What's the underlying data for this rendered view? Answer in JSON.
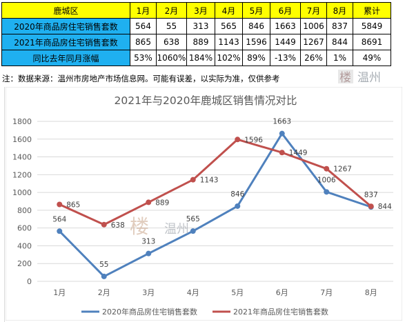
{
  "table": {
    "header": [
      "鹿城区",
      "1月",
      "2月",
      "3月",
      "4月",
      "5月",
      "6月",
      "7月",
      "8月",
      "累计"
    ],
    "rows": [
      {
        "label": "2020年商品房住宅销售套数",
        "cells": [
          "564",
          "55",
          "313",
          "565",
          "846",
          "1663",
          "1006",
          "837",
          "5849"
        ]
      },
      {
        "label": "2021年商品房住宅销售套数",
        "cells": [
          "865",
          "638",
          "889",
          "1143",
          "1596",
          "1449",
          "1267",
          "844",
          "8691"
        ]
      },
      {
        "label": "同比去年同月涨幅",
        "cells": [
          "53%",
          "1060%",
          "184%",
          "102%",
          "89%",
          "-13%",
          "26%",
          "1%",
          "49%"
        ]
      }
    ]
  },
  "note": "注：数据来源：温州市房地产市场信息网。可能有误差，以实际为准，仅供参考",
  "watermark": {
    "brand_char": "楼",
    "city": "温州"
  },
  "colors": {
    "series2020": "#4f81bd",
    "series2021": "#c0504d",
    "header_bg": "#ffff00",
    "label_bg": "#1fb0f0"
  },
  "chart_data": {
    "type": "line",
    "title": "2021年与2020年鹿城区销售情况对比",
    "categories": [
      "1月",
      "2月",
      "3月",
      "4月",
      "5月",
      "6月",
      "7月",
      "8月"
    ],
    "series": [
      {
        "name": "2020年商品房住宅销售套数",
        "values": [
          564,
          55,
          313,
          565,
          846,
          1663,
          1006,
          837
        ]
      },
      {
        "name": "2021年商品房住宅销售套数",
        "values": [
          865,
          638,
          889,
          1143,
          1596,
          1449,
          1267,
          844
        ]
      }
    ],
    "ylim": [
      0,
      1800
    ],
    "yticks": [
      0,
      200,
      400,
      600,
      800,
      1000,
      1200,
      1400,
      1600,
      1800
    ],
    "grid": true,
    "legend": "bottom"
  }
}
